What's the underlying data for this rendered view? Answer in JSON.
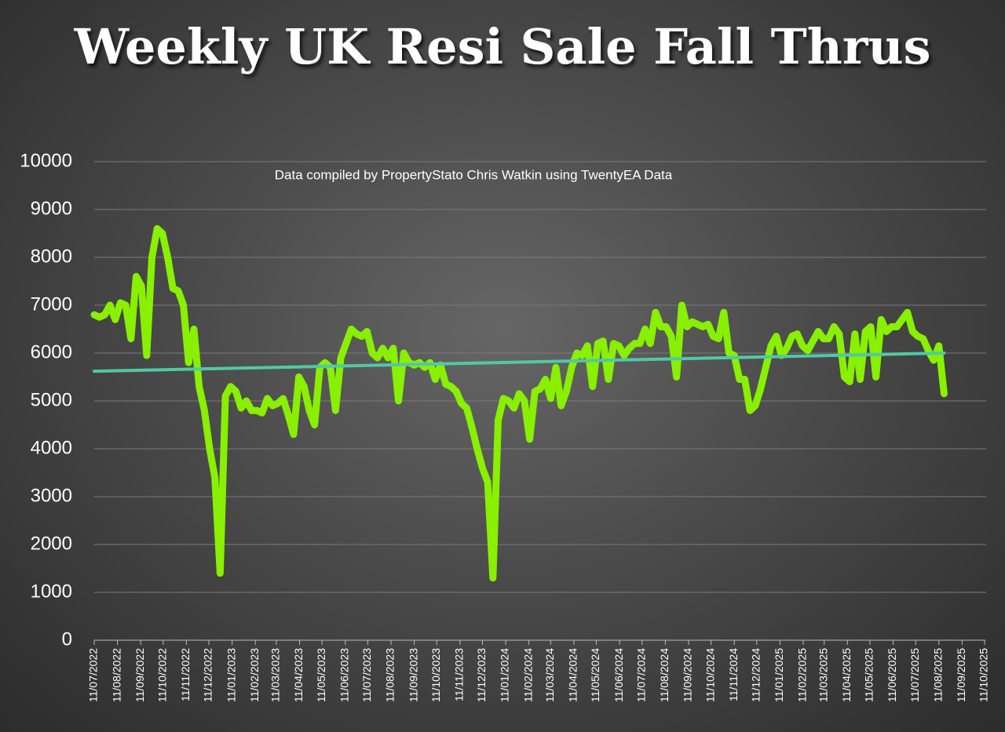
{
  "chart_data": {
    "type": "line",
    "title": "Weekly UK Resi Sale Fall Thrus",
    "subtitle": "Data compiled by PropertyStato Chris Watkin using TwentyEA Data",
    "series": [
      {
        "color": "#88f000",
        "x": [
          "2022-07-11",
          "2022-07-18",
          "2022-07-25",
          "2022-08-01",
          "2022-08-08",
          "2022-08-15",
          "2022-08-22",
          "2022-08-29",
          "2022-09-05",
          "2022-09-12",
          "2022-09-19",
          "2022-09-26",
          "2022-10-03",
          "2022-10-10",
          "2022-10-17",
          "2022-10-24",
          "2022-10-31",
          "2022-11-07",
          "2022-11-14",
          "2022-11-21",
          "2022-11-28",
          "2022-12-05",
          "2022-12-12",
          "2022-12-19",
          "2022-12-26",
          "2023-01-02",
          "2023-01-09",
          "2023-01-16",
          "2023-01-23",
          "2023-01-30",
          "2023-02-06",
          "2023-02-13",
          "2023-02-20",
          "2023-02-27",
          "2023-03-06",
          "2023-03-13",
          "2023-03-20",
          "2023-03-27",
          "2023-04-03",
          "2023-04-10",
          "2023-04-17",
          "2023-04-24",
          "2023-05-01",
          "2023-05-08",
          "2023-05-15",
          "2023-05-22",
          "2023-05-29",
          "2023-06-05",
          "2023-06-12",
          "2023-06-19",
          "2023-06-26",
          "2023-07-03",
          "2023-07-10",
          "2023-07-17",
          "2023-07-24",
          "2023-07-31",
          "2023-08-07",
          "2023-08-14",
          "2023-08-21",
          "2023-08-28",
          "2023-09-04",
          "2023-09-11",
          "2023-09-18",
          "2023-09-25",
          "2023-10-02",
          "2023-10-09",
          "2023-10-16",
          "2023-10-23",
          "2023-10-30",
          "2023-11-06",
          "2023-11-13",
          "2023-11-20",
          "2023-11-27",
          "2023-12-04",
          "2023-12-11",
          "2023-12-18",
          "2023-12-25",
          "2024-01-01",
          "2024-01-08",
          "2024-01-15",
          "2024-01-22",
          "2024-01-29",
          "2024-02-05",
          "2024-02-12",
          "2024-02-19",
          "2024-02-26",
          "2024-03-04",
          "2024-03-11",
          "2024-03-18",
          "2024-03-25",
          "2024-04-01",
          "2024-04-08",
          "2024-04-15",
          "2024-04-22",
          "2024-04-29",
          "2024-05-06",
          "2024-05-13",
          "2024-05-20",
          "2024-05-27",
          "2024-06-03",
          "2024-06-10",
          "2024-06-17",
          "2024-06-24",
          "2024-07-01",
          "2024-07-08",
          "2024-07-15",
          "2024-07-22",
          "2024-07-29",
          "2024-08-05",
          "2024-08-12",
          "2024-08-19",
          "2024-08-26",
          "2024-09-02",
          "2024-09-09",
          "2024-09-16",
          "2024-09-23",
          "2024-09-30",
          "2024-10-07",
          "2024-10-14",
          "2024-10-21",
          "2024-10-28",
          "2024-11-04",
          "2024-11-11",
          "2024-11-18",
          "2024-11-25",
          "2024-12-02",
          "2024-12-09",
          "2024-12-16",
          "2024-12-23",
          "2024-12-30",
          "2025-01-06",
          "2025-01-13",
          "2025-01-20",
          "2025-01-27",
          "2025-02-03",
          "2025-02-10",
          "2025-02-17",
          "2025-02-24",
          "2025-03-03",
          "2025-03-10",
          "2025-03-17",
          "2025-03-24",
          "2025-03-31",
          "2025-04-07",
          "2025-04-14",
          "2025-04-21",
          "2025-04-28",
          "2025-05-05",
          "2025-05-12",
          "2025-05-19",
          "2025-05-26",
          "2025-06-02",
          "2025-06-09",
          "2025-06-16",
          "2025-06-23",
          "2025-06-30",
          "2025-07-07",
          "2025-07-14",
          "2025-07-21",
          "2025-07-28",
          "2025-08-04",
          "2025-08-11",
          "2025-08-18"
        ],
        "values": [
          6800,
          6750,
          6800,
          7000,
          6700,
          7050,
          7000,
          6300,
          7600,
          7400,
          5950,
          8000,
          8600,
          8500,
          8000,
          7350,
          7300,
          7000,
          5800,
          6500,
          5300,
          4800,
          4000,
          3400,
          1400,
          5100,
          5300,
          5200,
          4850,
          5000,
          4800,
          4800,
          4750,
          5050,
          4900,
          4950,
          5050,
          4700,
          4300,
          5500,
          5300,
          4800,
          4500,
          5700,
          5800,
          5700,
          4800,
          5900,
          6200,
          6500,
          6400,
          6350,
          6450,
          6000,
          5900,
          6100,
          5900,
          6100,
          5000,
          6000,
          5800,
          5750,
          5800,
          5700,
          5800,
          5450,
          5750,
          5350,
          5300,
          5200,
          4950,
          4850,
          4450,
          4000,
          3600,
          3300,
          1300,
          4600,
          5050,
          5000,
          4850,
          5150,
          5000,
          4200,
          5200,
          5250,
          5450,
          5050,
          5700,
          4900,
          5200,
          5700,
          6000,
          5950,
          6150,
          5300,
          6200,
          6250,
          5450,
          6200,
          6150,
          5950,
          6100,
          6200,
          6200,
          6500,
          6200,
          6850,
          6550,
          6550,
          6350,
          5500,
          7000,
          6550,
          6650,
          6600,
          6550,
          6600,
          6350,
          6300,
          6850,
          6000,
          5950,
          5450,
          5450,
          4800,
          4900,
          5250,
          5700,
          6150,
          6350,
          5950,
          6100,
          6350,
          6400,
          6150,
          6050,
          6250,
          6450,
          6300,
          6300,
          6550,
          6400,
          5500,
          5400,
          6400,
          5450,
          6450,
          6550,
          5500,
          6700,
          6450,
          6550,
          6550,
          6700,
          6850,
          6450,
          6350,
          6300,
          6050,
          5850,
          6150,
          5150
        ]
      },
      {
        "color": "#4fc9a8",
        "x": [
          "2022-07-11",
          "2025-08-18"
        ],
        "values": [
          5620,
          6000
        ]
      }
    ],
    "xlim": [
      "2022-07-11",
      "2025-10-11"
    ],
    "xticks": [
      {
        "value": "2022-07-11",
        "label": "11/07/2022"
      },
      {
        "value": "2022-08-11",
        "label": "11/08/2022"
      },
      {
        "value": "2022-09-11",
        "label": "11/09/2022"
      },
      {
        "value": "2022-10-11",
        "label": "11/10/2022"
      },
      {
        "value": "2022-11-11",
        "label": "11/11/2022"
      },
      {
        "value": "2022-12-11",
        "label": "11/12/2022"
      },
      {
        "value": "2023-01-11",
        "label": "11/01/2023"
      },
      {
        "value": "2023-02-11",
        "label": "11/02/2023"
      },
      {
        "value": "2023-03-11",
        "label": "11/03/2023"
      },
      {
        "value": "2023-04-11",
        "label": "11/04/2023"
      },
      {
        "value": "2023-05-11",
        "label": "11/05/2023"
      },
      {
        "value": "2023-06-11",
        "label": "11/06/2023"
      },
      {
        "value": "2023-07-11",
        "label": "11/07/2023"
      },
      {
        "value": "2023-08-11",
        "label": "11/08/2023"
      },
      {
        "value": "2023-09-11",
        "label": "11/09/2023"
      },
      {
        "value": "2023-10-11",
        "label": "11/10/2023"
      },
      {
        "value": "2023-11-11",
        "label": "11/11/2023"
      },
      {
        "value": "2023-12-11",
        "label": "11/12/2023"
      },
      {
        "value": "2024-01-11",
        "label": "11/01/2024"
      },
      {
        "value": "2024-02-11",
        "label": "11/02/2024"
      },
      {
        "value": "2024-03-11",
        "label": "11/03/2024"
      },
      {
        "value": "2024-04-11",
        "label": "11/04/2024"
      },
      {
        "value": "2024-05-11",
        "label": "11/05/2024"
      },
      {
        "value": "2024-06-11",
        "label": "11/06/2024"
      },
      {
        "value": "2024-07-11",
        "label": "11/07/2024"
      },
      {
        "value": "2024-08-11",
        "label": "11/08/2024"
      },
      {
        "value": "2024-09-11",
        "label": "11/09/2024"
      },
      {
        "value": "2024-10-11",
        "label": "11/10/2024"
      },
      {
        "value": "2024-11-11",
        "label": "11/11/2024"
      },
      {
        "value": "2024-12-11",
        "label": "11/12/2024"
      },
      {
        "value": "2025-01-11",
        "label": "11/01/2025"
      },
      {
        "value": "2025-02-11",
        "label": "11/02/2025"
      },
      {
        "value": "2025-03-11",
        "label": "11/03/2025"
      },
      {
        "value": "2025-04-11",
        "label": "11/04/2025"
      },
      {
        "value": "2025-05-11",
        "label": "11/05/2025"
      },
      {
        "value": "2025-06-11",
        "label": "11/06/2025"
      },
      {
        "value": "2025-07-11",
        "label": "11/07/2025"
      },
      {
        "value": "2025-08-11",
        "label": "11/08/2025"
      },
      {
        "value": "2025-09-11",
        "label": "11/09/2025"
      },
      {
        "value": "2025-10-11",
        "label": "11/10/2025"
      }
    ],
    "ylim": [
      0,
      10000
    ],
    "yticks": [
      0,
      1000,
      2000,
      3000,
      4000,
      5000,
      6000,
      7000,
      8000,
      9000,
      10000
    ],
    "grid": true
  }
}
